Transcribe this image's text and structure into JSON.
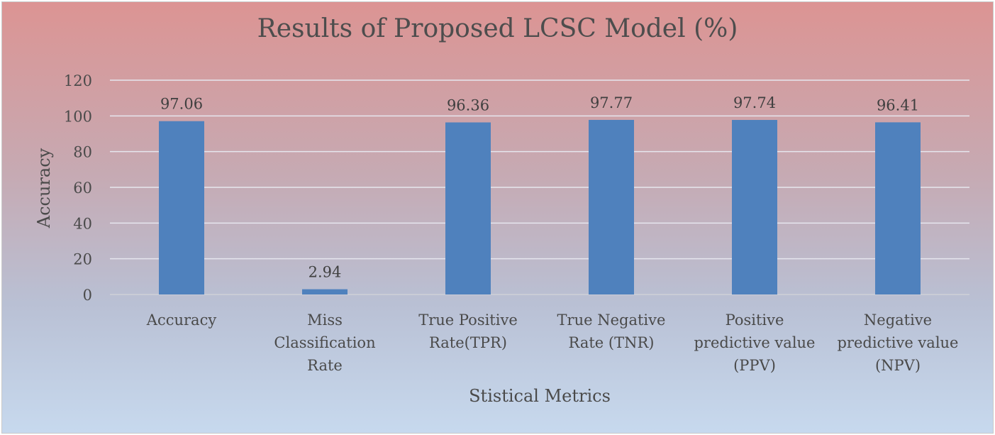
{
  "chart_data": {
    "type": "bar",
    "title": "Results of Proposed LCSC Model (%)",
    "xlabel": "Stistical Metrics",
    "ylabel": "Accuracy",
    "ylim": [
      0,
      120
    ],
    "yticks": [
      0,
      20,
      40,
      60,
      80,
      100,
      120
    ],
    "grid": true,
    "categories": [
      [
        "Accuracy"
      ],
      [
        "Miss",
        "Classification",
        "Rate"
      ],
      [
        "True Positive",
        "Rate(TPR)"
      ],
      [
        "True Negative",
        "Rate (TNR)"
      ],
      [
        "Positive",
        "predictive value",
        "(PPV)"
      ],
      [
        "Negative",
        "predictive value",
        "(NPV)"
      ]
    ],
    "values": [
      97.06,
      2.94,
      96.36,
      97.77,
      97.74,
      96.41
    ],
    "data_labels": [
      "97.06",
      "2.94",
      "96.36",
      "97.77",
      "97.74",
      "96.41"
    ],
    "colors": {
      "bar": "#4f81bd",
      "grid": "#e6e6ee"
    }
  }
}
